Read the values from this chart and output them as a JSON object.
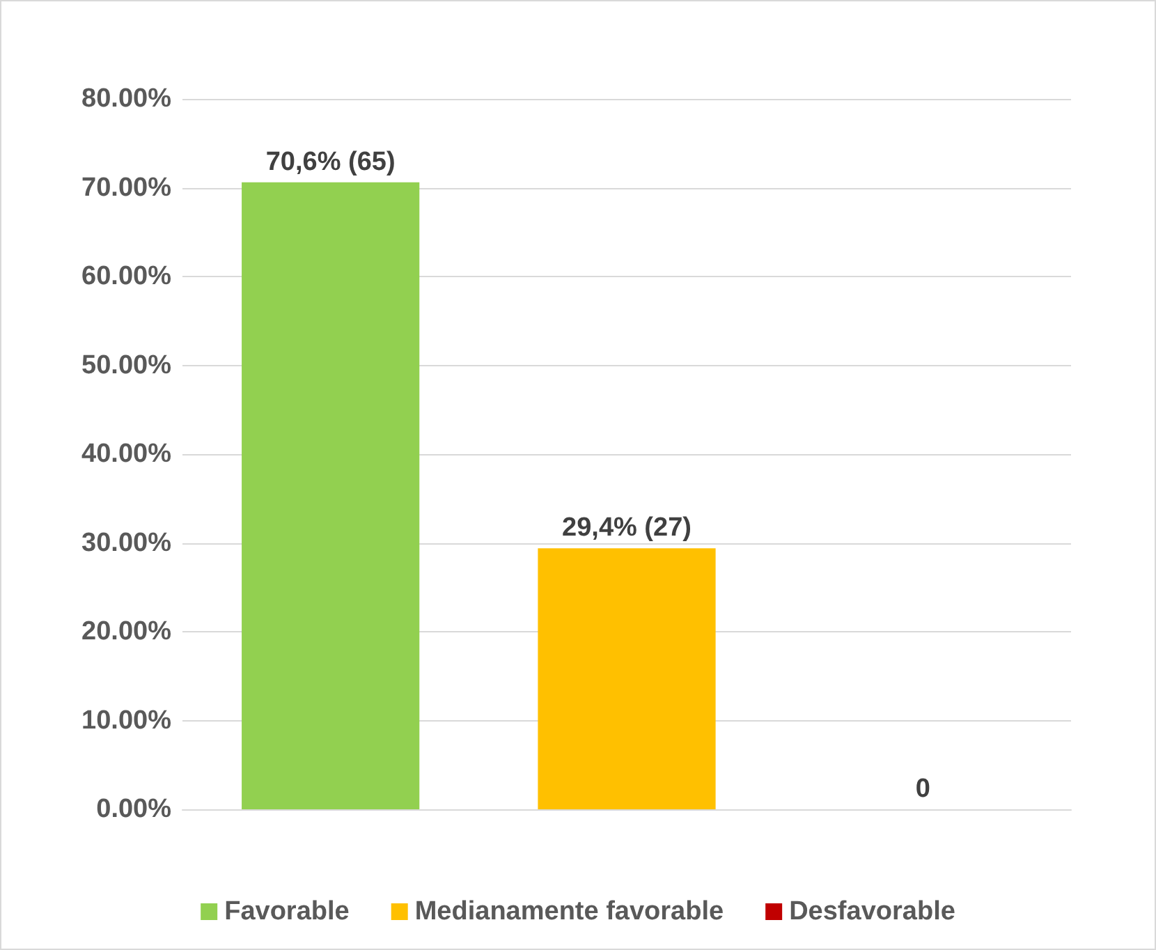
{
  "chart_data": {
    "type": "bar",
    "categories": [
      null,
      null,
      null
    ],
    "stacked": true,
    "series": [
      {
        "name": "Favorable",
        "color": "#92d050",
        "values": [
          70.6,
          null,
          null
        ],
        "value_labels": [
          "70,6% (65)",
          null,
          null
        ]
      },
      {
        "name": "Medianamente favorable",
        "color": "#ffc000",
        "values": [
          null,
          29.4,
          null
        ],
        "value_labels": [
          null,
          "29,4% (27)",
          null
        ]
      },
      {
        "name": "Desfavorable",
        "color": "#c00000",
        "values": [
          null,
          null,
          0
        ],
        "value_labels": [
          null,
          null,
          "0"
        ]
      }
    ],
    "ylim": [
      0,
      80
    ],
    "yticks": [
      {
        "value": 0,
        "label": "0.00%"
      },
      {
        "value": 10,
        "label": "10.00%"
      },
      {
        "value": 20,
        "label": "20.00%"
      },
      {
        "value": 30,
        "label": "30.00%"
      },
      {
        "value": 40,
        "label": "40.00%"
      },
      {
        "value": 50,
        "label": "50.00%"
      },
      {
        "value": 60,
        "label": "60.00%"
      },
      {
        "value": 70,
        "label": "70.00%"
      },
      {
        "value": 80,
        "label": "80.00%"
      }
    ],
    "grid": "y",
    "legend": "bottom"
  }
}
